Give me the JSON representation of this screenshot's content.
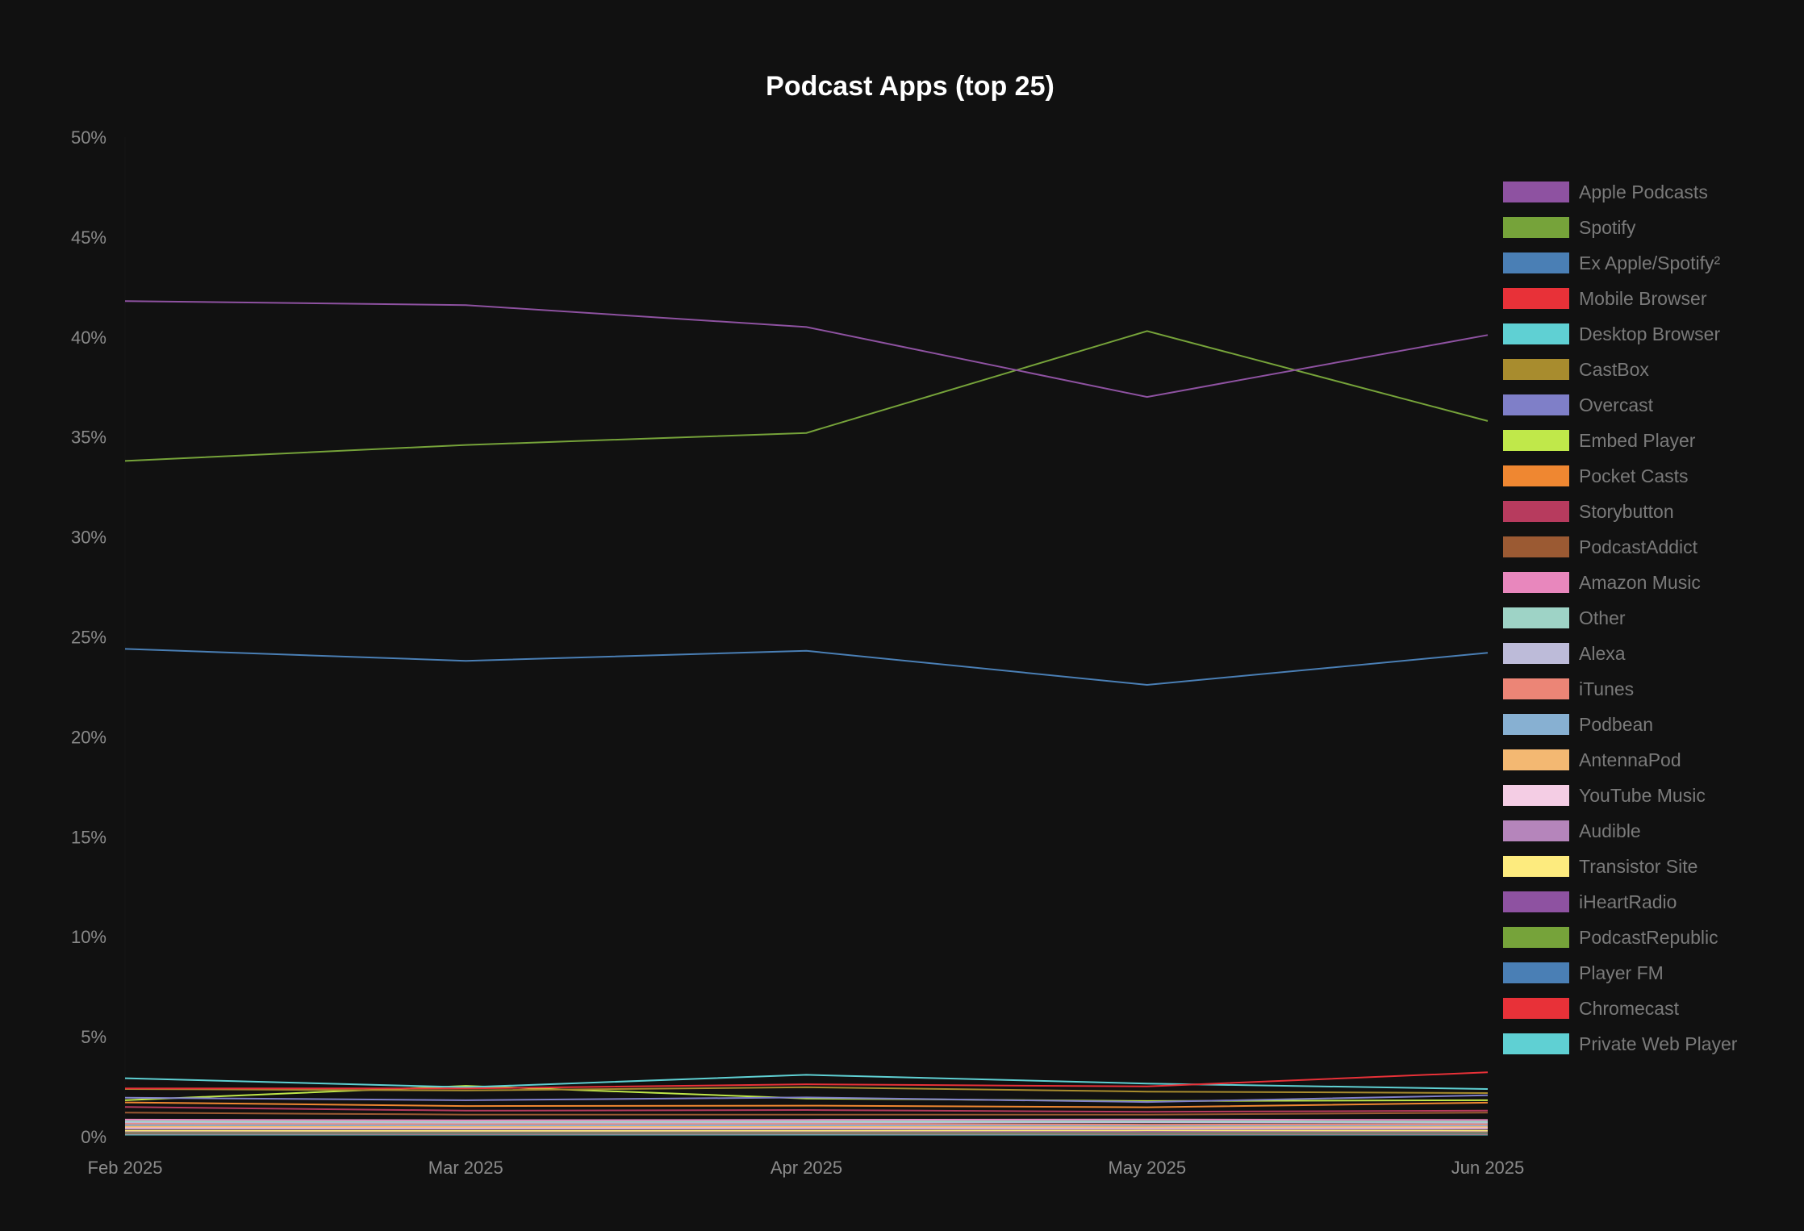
{
  "chart_data": {
    "type": "line",
    "title": "Podcast Apps (top 25)",
    "xlabel": "",
    "ylabel": "",
    "categories": [
      "Feb 2025",
      "Mar 2025",
      "Apr 2025",
      "May 2025",
      "Jun 2025"
    ],
    "ylim": [
      0,
      50
    ],
    "yticks": [
      "0%",
      "5%",
      "10%",
      "15%",
      "20%",
      "25%",
      "30%",
      "35%",
      "40%",
      "45%",
      "50%"
    ],
    "ytick_values": [
      0,
      5,
      10,
      15,
      20,
      25,
      30,
      35,
      40,
      45,
      50
    ],
    "grid": false,
    "legend_position": "right",
    "series": [
      {
        "name": "Apple Podcasts",
        "color": "#8e52a1",
        "values": [
          41.8,
          41.6,
          40.5,
          37.0,
          40.1
        ]
      },
      {
        "name": "Spotify",
        "color": "#76a33a",
        "values": [
          33.8,
          34.6,
          35.2,
          40.3,
          35.8
        ]
      },
      {
        "name": "Ex Apple/Spotify²",
        "color": "#4a7fb5",
        "values": [
          24.4,
          23.8,
          24.3,
          22.6,
          24.2
        ]
      },
      {
        "name": "Mobile Browser",
        "color": "#e83138",
        "values": [
          2.41,
          2.41,
          2.62,
          2.51,
          3.22
        ]
      },
      {
        "name": "Desktop Browser",
        "color": "#5fd0d3",
        "values": [
          2.92,
          2.47,
          3.09,
          2.65,
          2.38
        ]
      },
      {
        "name": "CastBox",
        "color": "#a88c2e",
        "values": [
          2.38,
          2.31,
          2.47,
          2.25,
          2.18
        ]
      },
      {
        "name": "Overcast",
        "color": "#7f7fc8",
        "values": [
          1.95,
          1.82,
          1.96,
          1.73,
          2.07
        ]
      },
      {
        "name": "Embed Player",
        "color": "#c0e84a",
        "values": [
          1.82,
          2.54,
          1.91,
          1.78,
          1.82
        ]
      },
      {
        "name": "Pocket Casts",
        "color": "#ef8731",
        "values": [
          1.71,
          1.53,
          1.55,
          1.47,
          1.7
        ]
      },
      {
        "name": "Storybutton",
        "color": "#b73b5e",
        "values": [
          1.48,
          1.3,
          1.33,
          1.24,
          1.3
        ]
      },
      {
        "name": "PodcastAddict",
        "color": "#9b5a33",
        "values": [
          1.2,
          1.1,
          1.1,
          1.1,
          1.2
        ]
      },
      {
        "name": "Amazon Music",
        "color": "#e887bd",
        "values": [
          0.85,
          0.82,
          0.84,
          0.86,
          0.83
        ]
      },
      {
        "name": "Other",
        "color": "#9ed3c6",
        "values": [
          0.78,
          0.76,
          0.77,
          0.78,
          0.75
        ]
      },
      {
        "name": "Alexa",
        "color": "#bdbbd9",
        "values": [
          0.72,
          0.7,
          0.71,
          0.72,
          0.7
        ]
      },
      {
        "name": "iTunes",
        "color": "#ec8576",
        "values": [
          0.65,
          0.63,
          0.64,
          0.6,
          0.62
        ]
      },
      {
        "name": "Podbean",
        "color": "#87b0d2",
        "values": [
          0.58,
          0.56,
          0.57,
          0.55,
          0.56
        ]
      },
      {
        "name": "AntennaPod",
        "color": "#f3b872",
        "values": [
          0.5,
          0.49,
          0.5,
          0.48,
          0.5
        ]
      },
      {
        "name": "YouTube Music",
        "color": "#f4cde4",
        "values": [
          0.45,
          0.44,
          0.45,
          0.44,
          0.45
        ]
      },
      {
        "name": "Audible",
        "color": "#b585bb",
        "values": [
          0.4,
          0.39,
          0.4,
          0.39,
          0.4
        ]
      },
      {
        "name": "Transistor Site",
        "color": "#fdeb7e",
        "values": [
          0.3,
          0.29,
          0.3,
          0.31,
          0.3
        ]
      },
      {
        "name": "iHeartRadio",
        "color": "#8e52a1",
        "values": [
          0.25,
          0.25,
          0.25,
          0.24,
          0.25
        ]
      },
      {
        "name": "PodcastRepublic",
        "color": "#76a33a",
        "values": [
          0.2,
          0.2,
          0.2,
          0.19,
          0.2
        ]
      },
      {
        "name": "Player FM",
        "color": "#4a7fb5",
        "values": [
          0.18,
          0.17,
          0.18,
          0.17,
          0.17
        ]
      },
      {
        "name": "Chromecast",
        "color": "#e83138",
        "values": [
          0.15,
          0.14,
          0.15,
          0.14,
          0.14
        ]
      },
      {
        "name": "Private Web Player",
        "color": "#5fd0d3",
        "values": [
          0.1,
          0.1,
          0.1,
          0.1,
          0.1
        ]
      }
    ]
  }
}
